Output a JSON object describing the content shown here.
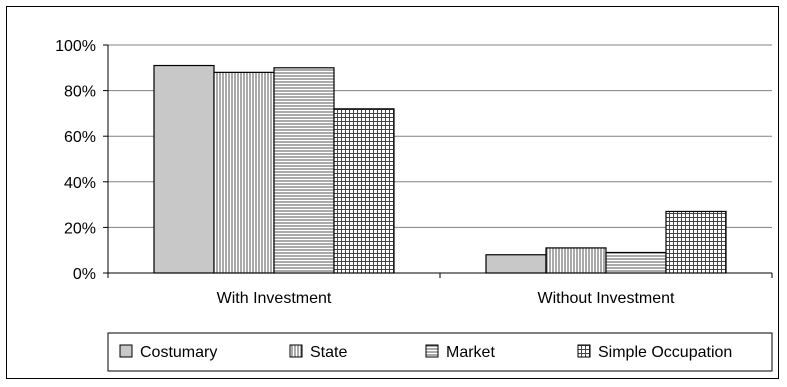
{
  "chart_data": {
    "type": "bar",
    "title": "",
    "xlabel": "",
    "ylabel": "",
    "categories": [
      "With Investment",
      "Without Investment"
    ],
    "series": [
      {
        "name": "Costumary",
        "values": [
          91,
          8
        ],
        "pattern": "solid"
      },
      {
        "name": "State",
        "values": [
          88,
          11
        ],
        "pattern": "vertical-lines"
      },
      {
        "name": "Market",
        "values": [
          90,
          9
        ],
        "pattern": "horizontal-lines"
      },
      {
        "name": "Simple Occupation",
        "values": [
          72,
          27
        ],
        "pattern": "grid"
      }
    ],
    "ylim": [
      0,
      100
    ],
    "yticks": [
      "0%",
      "20%",
      "40%",
      "60%",
      "80%",
      "100%"
    ],
    "ytick_values": [
      0,
      20,
      40,
      60,
      80,
      100
    ],
    "grid": true,
    "legend_position": "bottom",
    "colors": {
      "bar_fill": "#c8c8c8",
      "bar_stroke": "#000000",
      "gridline": "#808080"
    }
  }
}
